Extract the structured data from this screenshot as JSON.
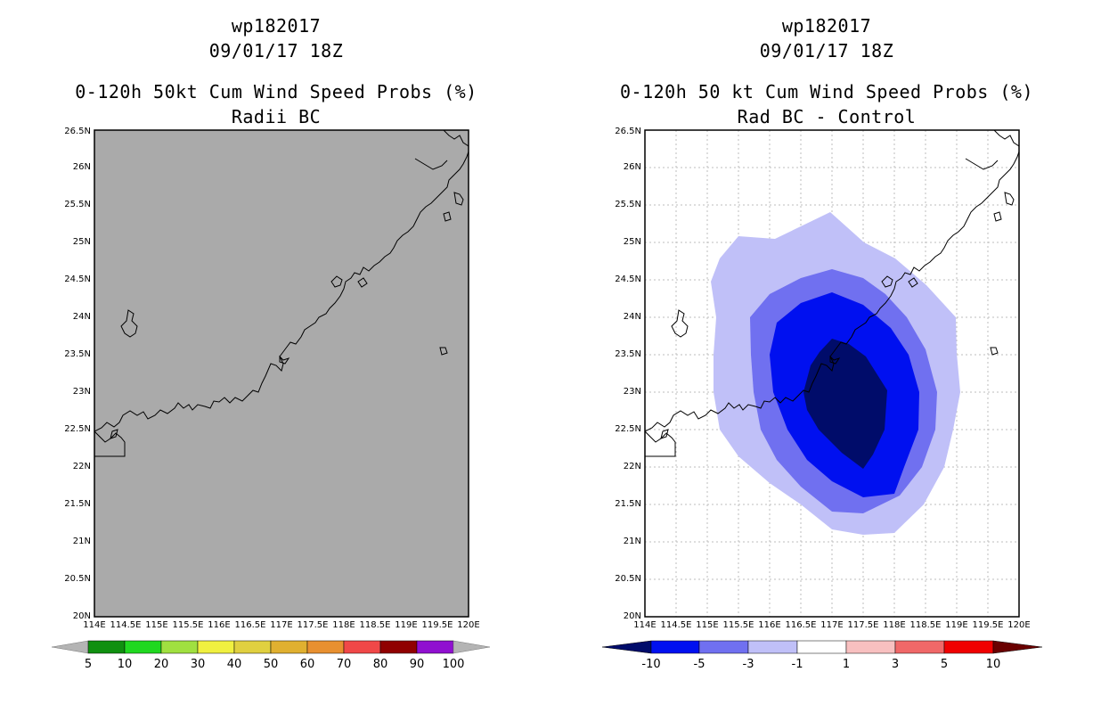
{
  "left_panel": {
    "storm_id": "wp182017",
    "datetime": "09/01/17 18Z",
    "title": "0-120h 50kt Cum Wind Speed Probs (%)",
    "subtitle": "Radii BC",
    "field_color": "#aaaaaa",
    "colorbar": {
      "labels": [
        "5",
        "10",
        "20",
        "30",
        "40",
        "50",
        "60",
        "70",
        "80",
        "90",
        "100"
      ],
      "colors": [
        "#109010",
        "#20d820",
        "#a0e040",
        "#f0f040",
        "#e0d040",
        "#e0b030",
        "#e89030",
        "#f04848",
        "#900000",
        "#9010d0"
      ],
      "end_arrow_color": "#b4b4b4"
    }
  },
  "right_panel": {
    "storm_id": "wp182017",
    "datetime": "09/01/17 18Z",
    "title": "0-120h 50 kt Cum Wind Speed Probs (%)",
    "subtitle": "Rad BC - Control",
    "colorbar": {
      "labels": [
        "-10",
        "-5",
        "-3",
        "-1",
        "1",
        "3",
        "5",
        "10"
      ],
      "colors": [
        "#000c6a",
        "#0010f0",
        "#7070f0",
        "#c0c0f8",
        "#ffffff",
        "#f8c0c0",
        "#f06868",
        "#f00000",
        "#6a0000"
      ]
    },
    "contour_levels": [
      {
        "range": "-3 to -1",
        "color": "#c0c0f8"
      },
      {
        "range": "-5 to -3",
        "color": "#7070f0"
      },
      {
        "range": "-10 to -5",
        "color": "#0010f0"
      },
      {
        "range": "< -10",
        "color": "#000c6a"
      }
    ]
  },
  "axes": {
    "lon_labels": [
      "114E",
      "114.5E",
      "115E",
      "115.5E",
      "116E",
      "116.5E",
      "117E",
      "117.5E",
      "118E",
      "118.5E",
      "119E",
      "119.5E",
      "120E"
    ],
    "lat_labels": [
      "20N",
      "20.5N",
      "21N",
      "21.5N",
      "22N",
      "22.5N",
      "23N",
      "23.5N",
      "24N",
      "24.5N",
      "25N",
      "25.5N",
      "26N",
      "26.5N"
    ],
    "lon_range": [
      114,
      120
    ],
    "lat_range": [
      20,
      26.5
    ]
  }
}
